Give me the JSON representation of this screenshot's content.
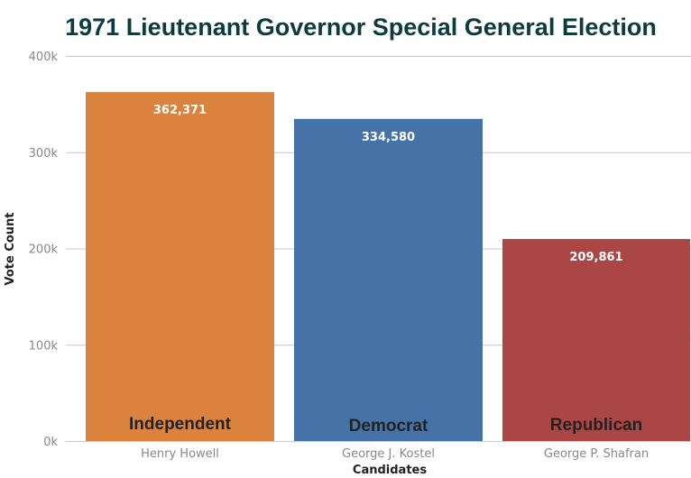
{
  "chart_data": {
    "type": "bar",
    "title": "1971 Lieutenant Governor Special General Election",
    "xlabel": "Candidates",
    "ylabel": "Vote Count",
    "ylim": [
      0,
      400000
    ],
    "yticks": [
      0,
      100000,
      200000,
      300000,
      400000
    ],
    "ytick_labels": [
      "0k",
      "100k",
      "200k",
      "300k",
      "400k"
    ],
    "grid": true,
    "categories": [
      "Henry Howell",
      "George J. Kostel",
      "George P. Shafran"
    ],
    "values": [
      362371,
      334580,
      209861
    ],
    "value_labels": [
      "362,371",
      "334,580",
      "209,861"
    ],
    "parties": [
      "Independent",
      "Democrat",
      "Republican"
    ],
    "colors": [
      "#db833e",
      "#4573a7",
      "#aa4744"
    ]
  }
}
